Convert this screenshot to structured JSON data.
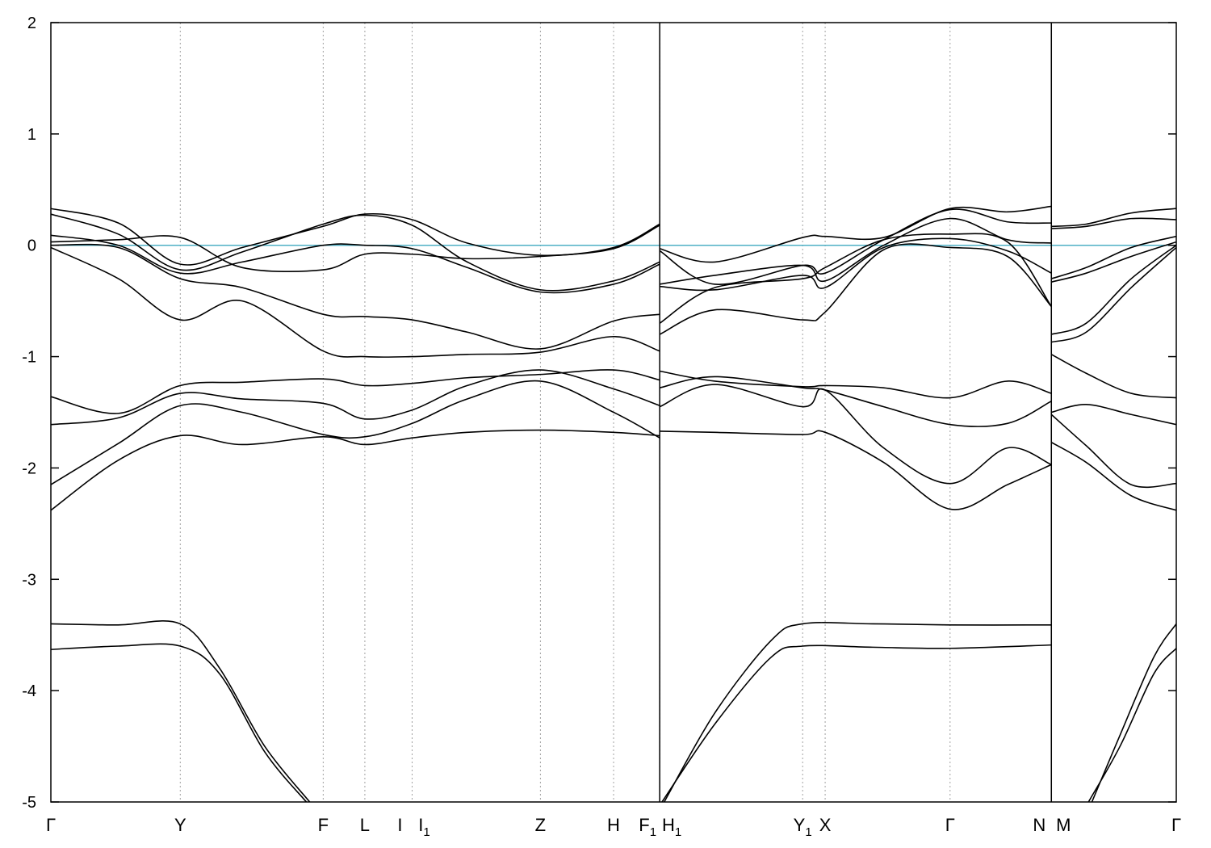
{
  "chart_data": {
    "type": "line",
    "title": "",
    "xlabel": "",
    "ylabel": "",
    "ylim": [
      -5,
      2
    ],
    "y_ticks": [
      2,
      1,
      0,
      -1,
      -2,
      -3,
      -4,
      -5
    ],
    "y_tick_labels": [
      "2",
      "1",
      "0",
      "-1",
      "-2",
      "-3",
      "-4",
      "-5"
    ],
    "xlim": [
      0,
      10
    ],
    "grid": "vertical dotted lines at high-symmetry points",
    "fermi_level": 0,
    "fermi_color": "#4fb0c6",
    "line_color": "#000000",
    "high_symmetry_points": [
      {
        "label": "Γ",
        "sub": "",
        "x": 0.0
      },
      {
        "label": "Y",
        "sub": "",
        "x": 1.15
      },
      {
        "label": "F",
        "sub": "",
        "x": 2.42
      },
      {
        "label": "L",
        "sub": "",
        "x": 2.79
      },
      {
        "label": "I",
        "sub": "",
        "x": 3.21
      },
      {
        "label": "I",
        "sub": "1",
        "x": 3.21
      },
      {
        "label": "Z",
        "sub": "",
        "x": 4.35
      },
      {
        "label": "H",
        "sub": "",
        "x": 5.0
      },
      {
        "label": "F",
        "sub": "1",
        "x": 5.41
      },
      {
        "label": "H",
        "sub": "1",
        "x": 5.41
      },
      {
        "label": "Y",
        "sub": "1",
        "x": 6.68
      },
      {
        "label": "X",
        "sub": "",
        "x": 6.88
      },
      {
        "label": "Γ",
        "sub": "",
        "x": 7.99
      },
      {
        "label": "N",
        "sub": "",
        "x": 8.89
      },
      {
        "label": "M",
        "sub": "",
        "x": 8.89
      },
      {
        "label": "Γ",
        "sub": "",
        "x": 10.0
      }
    ],
    "segments": [
      {
        "name": "Γ-Y-F-L-I-I1-Z-H-F1",
        "x_start": 0.0,
        "x_end": 5.41,
        "bands": [
          {
            "x": [
              0.0,
              0.6,
              1.15,
              1.7,
              2.42,
              2.79,
              3.21,
              3.7,
              4.35,
              5.0,
              5.41
            ],
            "y": [
              0.33,
              0.2,
              -0.17,
              -0.02,
              0.17,
              0.28,
              0.23,
              0.02,
              -0.09,
              -0.02,
              0.19
            ]
          },
          {
            "x": [
              0.0,
              0.6,
              1.15,
              1.7,
              2.42,
              2.79,
              3.21,
              3.7,
              4.35,
              5.0,
              5.41
            ],
            "y": [
              0.28,
              0.1,
              -0.22,
              -0.06,
              0.19,
              0.27,
              0.18,
              -0.15,
              -0.4,
              -0.32,
              -0.15
            ]
          },
          {
            "x": [
              0.0,
              0.6,
              1.15,
              1.7,
              2.42,
              2.79,
              3.21,
              3.7,
              4.35,
              5.0,
              5.41
            ],
            "y": [
              0.09,
              0.0,
              -0.25,
              -0.15,
              0.0,
              0.0,
              -0.03,
              -0.2,
              -0.42,
              -0.35,
              -0.17
            ]
          },
          {
            "x": [
              0.0,
              0.6,
              1.15,
              1.7,
              2.42,
              2.79,
              3.21,
              3.7,
              4.35,
              5.0,
              5.41
            ],
            "y": [
              0.03,
              0.05,
              0.07,
              -0.2,
              -0.22,
              -0.08,
              -0.08,
              -0.12,
              -0.1,
              -0.03,
              0.18
            ]
          },
          {
            "x": [
              0.0,
              0.6,
              1.15,
              1.7,
              2.42,
              2.79,
              3.21,
              3.7,
              4.35,
              5.0,
              5.41
            ],
            "y": [
              0.0,
              -0.02,
              -0.3,
              -0.38,
              -0.62,
              -0.64,
              -0.67,
              -0.78,
              -0.93,
              -0.68,
              -0.62
            ]
          },
          {
            "x": [
              0.0,
              0.6,
              1.15,
              1.7,
              2.42,
              2.79,
              3.21,
              3.7,
              4.35,
              5.0,
              5.41
            ],
            "y": [
              -0.02,
              -0.3,
              -0.67,
              -0.5,
              -0.95,
              -1.0,
              -1.0,
              -0.98,
              -0.96,
              -0.82,
              -0.95
            ]
          },
          {
            "x": [
              0.0,
              0.6,
              1.15,
              1.7,
              2.42,
              2.79,
              3.21,
              3.7,
              4.35,
              5.0,
              5.41
            ],
            "y": [
              -1.36,
              -1.51,
              -1.26,
              -1.23,
              -1.2,
              -1.26,
              -1.24,
              -1.19,
              -1.16,
              -1.12,
              -1.21
            ]
          },
          {
            "x": [
              0.0,
              0.6,
              1.15,
              1.7,
              2.42,
              2.79,
              3.21,
              3.7,
              4.35,
              5.0,
              5.41
            ],
            "y": [
              -1.61,
              -1.55,
              -1.33,
              -1.38,
              -1.42,
              -1.56,
              -1.48,
              -1.26,
              -1.12,
              -1.29,
              -1.44
            ]
          },
          {
            "x": [
              0.0,
              0.6,
              1.15,
              1.7,
              2.42,
              2.79,
              3.21,
              3.7,
              4.35,
              5.0,
              5.41
            ],
            "y": [
              -2.15,
              -1.78,
              -1.44,
              -1.5,
              -1.7,
              -1.72,
              -1.6,
              -1.38,
              -1.22,
              -1.5,
              -1.73
            ]
          },
          {
            "x": [
              0.0,
              0.6,
              1.15,
              1.7,
              2.42,
              2.79,
              3.21,
              3.7,
              4.35,
              5.0,
              5.41
            ],
            "y": [
              -2.38,
              -1.93,
              -1.71,
              -1.79,
              -1.72,
              -1.79,
              -1.73,
              -1.68,
              -1.66,
              -1.68,
              -1.71
            ]
          },
          {
            "x": [
              0.0,
              0.6,
              1.15,
              1.5,
              1.9,
              2.3
            ],
            "y": [
              -3.4,
              -3.41,
              -3.4,
              -3.8,
              -4.5,
              -5.0
            ]
          },
          {
            "x": [
              0.0,
              0.6,
              1.15,
              1.5,
              1.9,
              2.27
            ],
            "y": [
              -3.63,
              -3.6,
              -3.6,
              -3.85,
              -4.55,
              -5.0
            ]
          }
        ]
      },
      {
        "name": "H1-Y1-X-Γ-N",
        "x_start": 5.41,
        "x_end": 8.89,
        "bands": [
          {
            "x": [
              5.41,
              5.9,
              6.68,
              6.88,
              7.4,
              7.99,
              8.5,
              8.89
            ],
            "y": [
              -0.03,
              -0.15,
              0.07,
              0.08,
              0.07,
              0.33,
              0.3,
              0.35
            ]
          },
          {
            "x": [
              5.41,
              5.9,
              6.68,
              6.88,
              7.4,
              7.99,
              8.5,
              8.89
            ],
            "y": [
              -0.05,
              -0.35,
              -0.18,
              -0.25,
              0.05,
              0.32,
              0.21,
              0.2
            ]
          },
          {
            "x": [
              5.41,
              5.9,
              6.68,
              6.88,
              7.4,
              7.99,
              8.5,
              8.89
            ],
            "y": [
              -0.35,
              -0.27,
              -0.18,
              -0.32,
              0.0,
              0.24,
              0.05,
              0.02
            ]
          },
          {
            "x": [
              5.41,
              5.9,
              6.68,
              6.88,
              7.4,
              7.99,
              8.5,
              8.89
            ],
            "y": [
              -0.37,
              -0.4,
              -0.27,
              -0.38,
              -0.02,
              0.06,
              -0.05,
              -0.25
            ]
          },
          {
            "x": [
              5.41,
              5.9,
              6.68,
              6.88,
              7.4,
              7.99,
              8.5,
              8.89
            ],
            "y": [
              -0.7,
              -0.38,
              -0.3,
              -0.2,
              0.05,
              0.1,
              0.03,
              -0.55
            ]
          },
          {
            "x": [
              5.41,
              5.9,
              6.68,
              6.88,
              7.4,
              7.99,
              8.5,
              8.89
            ],
            "y": [
              -0.8,
              -0.58,
              -0.67,
              -0.6,
              -0.04,
              -0.02,
              -0.1,
              -0.55
            ]
          },
          {
            "x": [
              5.41,
              5.9,
              6.68,
              6.88,
              7.4,
              7.99,
              8.5,
              8.89
            ],
            "y": [
              -1.13,
              -1.22,
              -1.27,
              -1.26,
              -1.28,
              -1.37,
              -1.22,
              -1.33
            ]
          },
          {
            "x": [
              5.41,
              5.9,
              6.68,
              6.88,
              7.4,
              7.99,
              8.5,
              8.89
            ],
            "y": [
              -1.28,
              -1.18,
              -1.28,
              -1.3,
              -1.45,
              -1.61,
              -1.6,
              -1.4
            ]
          },
          {
            "x": [
              5.41,
              5.9,
              6.68,
              6.88,
              7.4,
              7.99,
              8.5,
              8.89
            ],
            "y": [
              -1.45,
              -1.25,
              -1.45,
              -1.3,
              -1.82,
              -2.14,
              -1.82,
              -1.97
            ]
          },
          {
            "x": [
              5.41,
              5.9,
              6.68,
              6.88,
              7.4,
              7.99,
              8.5,
              8.89
            ],
            "y": [
              -1.67,
              -1.68,
              -1.7,
              -1.68,
              -1.95,
              -2.37,
              -2.15,
              -1.97
            ]
          },
          {
            "x": [
              5.45,
              5.9,
              6.4,
              6.68,
              7.3,
              7.99,
              8.89
            ],
            "y": [
              -5.0,
              -4.2,
              -3.55,
              -3.4,
              -3.4,
              -3.41,
              -3.41
            ]
          },
          {
            "x": [
              5.43,
              5.9,
              6.4,
              6.68,
              7.3,
              7.99,
              8.89
            ],
            "y": [
              -5.0,
              -4.3,
              -3.7,
              -3.6,
              -3.61,
              -3.62,
              -3.59
            ]
          }
        ]
      },
      {
        "name": "M-Γ",
        "x_start": 8.89,
        "x_end": 10.0,
        "bands": [
          {
            "x": [
              8.89,
              9.2,
              9.6,
              10.0
            ],
            "y": [
              0.17,
              0.19,
              0.29,
              0.33
            ]
          },
          {
            "x": [
              8.89,
              9.2,
              9.6,
              10.0
            ],
            "y": [
              0.15,
              0.17,
              0.24,
              0.23
            ]
          },
          {
            "x": [
              8.89,
              9.2,
              9.6,
              10.0
            ],
            "y": [
              -0.3,
              -0.2,
              -0.02,
              0.08
            ]
          },
          {
            "x": [
              8.89,
              9.2,
              9.6,
              10.0
            ],
            "y": [
              -0.33,
              -0.25,
              -0.1,
              0.03
            ]
          },
          {
            "x": [
              8.89,
              9.2,
              9.6,
              10.0
            ],
            "y": [
              -0.8,
              -0.7,
              -0.3,
              0.0
            ]
          },
          {
            "x": [
              8.89,
              9.2,
              9.6,
              10.0
            ],
            "y": [
              -0.87,
              -0.78,
              -0.38,
              -0.02
            ]
          },
          {
            "x": [
              8.89,
              9.2,
              9.6,
              10.0
            ],
            "y": [
              -0.98,
              -1.15,
              -1.33,
              -1.37
            ]
          },
          {
            "x": [
              8.89,
              9.2,
              9.6,
              10.0
            ],
            "y": [
              -1.5,
              -1.43,
              -1.52,
              -1.61
            ]
          },
          {
            "x": [
              8.89,
              9.2,
              9.6,
              10.0
            ],
            "y": [
              -1.52,
              -1.8,
              -2.15,
              -2.14
            ]
          },
          {
            "x": [
              8.89,
              9.2,
              9.6,
              10.0
            ],
            "y": [
              -1.77,
              -1.95,
              -2.25,
              -2.38
            ]
          },
          {
            "x": [
              9.25,
              9.5,
              9.8,
              10.0
            ],
            "y": [
              -5.0,
              -4.4,
              -3.7,
              -3.4
            ]
          },
          {
            "x": [
              9.22,
              9.5,
              9.8,
              10.0
            ],
            "y": [
              -5.0,
              -4.5,
              -3.85,
              -3.62
            ]
          }
        ]
      }
    ]
  }
}
